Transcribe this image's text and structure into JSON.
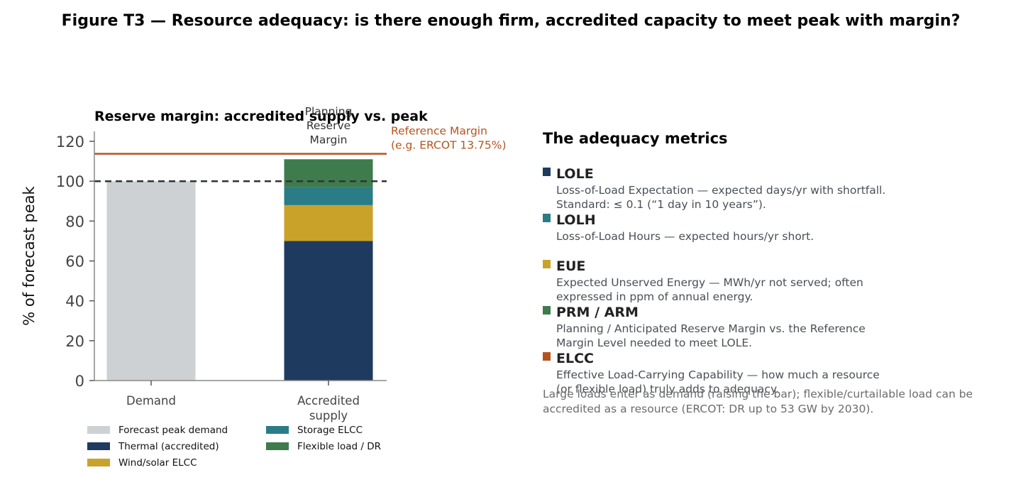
{
  "figure_title": "Figure T3 — Resource adequacy: is there enough firm, accredited capacity to meet peak with margin?",
  "colors": {
    "demand": "#CDD1D4",
    "thermal": "#1F3A5F",
    "wind_solar": "#C9A22A",
    "storage": "#2A7C86",
    "flexible": "#3E7B4D",
    "reference": "#B5531E",
    "peak_line": "#333333"
  },
  "chart_data": {
    "type": "bar",
    "title": "Reserve margin: accredited supply vs. peak",
    "ylabel": "% of forecast peak",
    "xlabel": "",
    "ylim": [
      0,
      125
    ],
    "yticks": [
      0,
      20,
      40,
      60,
      80,
      100,
      120
    ],
    "categories": [
      "Demand",
      "Accredited\nsupply"
    ],
    "stacked": true,
    "series": [
      {
        "name": "Forecast peak demand",
        "values": [
          100,
          0
        ],
        "color": "#CDD1D4"
      },
      {
        "name": "Thermal (accredited)",
        "values": [
          0,
          70
        ],
        "color": "#1F3A5F"
      },
      {
        "name": "Wind/solar ELCC",
        "values": [
          0,
          18
        ],
        "color": "#C9A22A"
      },
      {
        "name": "Storage ELCC",
        "values": [
          0,
          9
        ],
        "color": "#2A7C86"
      },
      {
        "name": "Flexible load / DR",
        "values": [
          0,
          14
        ],
        "color": "#3E7B4D"
      }
    ],
    "reference_lines": [
      {
        "y": 100,
        "style": "dashed",
        "color": "#333333"
      },
      {
        "y": 113.75,
        "style": "solid",
        "color": "#B5531E",
        "label": "Reference Margin\n(e.g. ERCOT 13.75%)"
      }
    ],
    "annotations": [
      {
        "text": "Planning\nReserve\nMargin",
        "category": "Accredited\nsupply"
      }
    ],
    "legend_position": "bottom",
    "grid": false
  },
  "metrics_title": "The adequacy metrics",
  "metrics": [
    {
      "name": "LOLE",
      "color": "#1F3A5F",
      "desc": "Loss-of-Load Expectation — expected days/yr with shortfall. Standard: ≤ 0.1 (“1 day in 10 years”)."
    },
    {
      "name": "LOLH",
      "color": "#2A7C86",
      "desc": "Loss-of-Load Hours — expected hours/yr short."
    },
    {
      "name": "EUE",
      "color": "#C9A22A",
      "desc": "Expected Unserved Energy — MWh/yr not served; often expressed in ppm of annual energy."
    },
    {
      "name": "PRM / ARM",
      "color": "#3E7B4D",
      "desc": "Planning / Anticipated Reserve Margin vs. the Reference Margin Level needed to meet LOLE."
    },
    {
      "name": "ELCC",
      "color": "#B5531E",
      "desc": "Effective Load-Carrying Capability — how much a resource (or flexible load) truly adds to adequacy."
    }
  ],
  "footnote": "Large loads enter as demand (raising the bar); flexible/curtailable load can be accredited as a resource (ERCOT: DR up to 53 GW by 2030)."
}
